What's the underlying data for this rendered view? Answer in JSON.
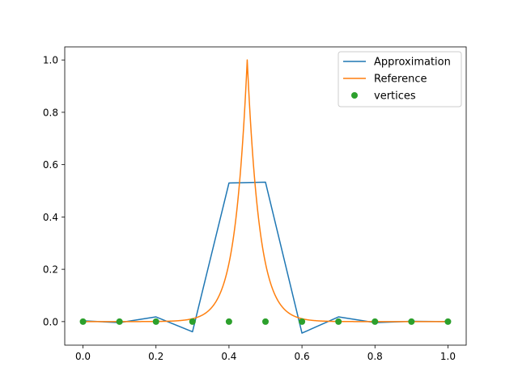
{
  "chart_data": {
    "type": "line",
    "xlim": [
      -0.05,
      1.05
    ],
    "ylim": [
      -0.09,
      1.05
    ],
    "grid": false,
    "legend_position": "top-right",
    "x_ticks": [
      {
        "value": 0.0,
        "label": "0.0"
      },
      {
        "value": 0.2,
        "label": "0.2"
      },
      {
        "value": 0.4,
        "label": "0.4"
      },
      {
        "value": 0.6,
        "label": "0.6"
      },
      {
        "value": 0.8,
        "label": "0.8"
      },
      {
        "value": 1.0,
        "label": "1.0"
      }
    ],
    "y_ticks": [
      {
        "value": 0.0,
        "label": "0.0"
      },
      {
        "value": 0.2,
        "label": "0.2"
      },
      {
        "value": 0.4,
        "label": "0.4"
      },
      {
        "value": 0.6,
        "label": "0.6"
      },
      {
        "value": 0.8,
        "label": "0.8"
      },
      {
        "value": 1.0,
        "label": "1.0"
      }
    ],
    "series": [
      {
        "name": "Approximation",
        "kind": "line",
        "color": "#1f77b4",
        "x": [
          0.0,
          0.1,
          0.2,
          0.3,
          0.4,
          0.5,
          0.6,
          0.7,
          0.8,
          0.9,
          1.0
        ],
        "y": [
          0.003,
          -0.004,
          0.018,
          -0.039,
          0.53,
          0.533,
          -0.044,
          0.018,
          -0.004,
          0.001,
          0.0
        ]
      },
      {
        "name": "Reference",
        "kind": "curve",
        "color": "#ff7f0e",
        "formula": "exp(-30*|x-0.45|)",
        "peak_x": 0.45,
        "decay": 30
      },
      {
        "name": "vertices",
        "kind": "scatter",
        "color": "#2ca02c",
        "x": [
          0.0,
          0.1,
          0.2,
          0.3,
          0.4,
          0.5,
          0.6,
          0.7,
          0.8,
          0.9,
          1.0
        ],
        "y": [
          0,
          0,
          0,
          0,
          0,
          0,
          0,
          0,
          0,
          0,
          0
        ]
      }
    ]
  }
}
